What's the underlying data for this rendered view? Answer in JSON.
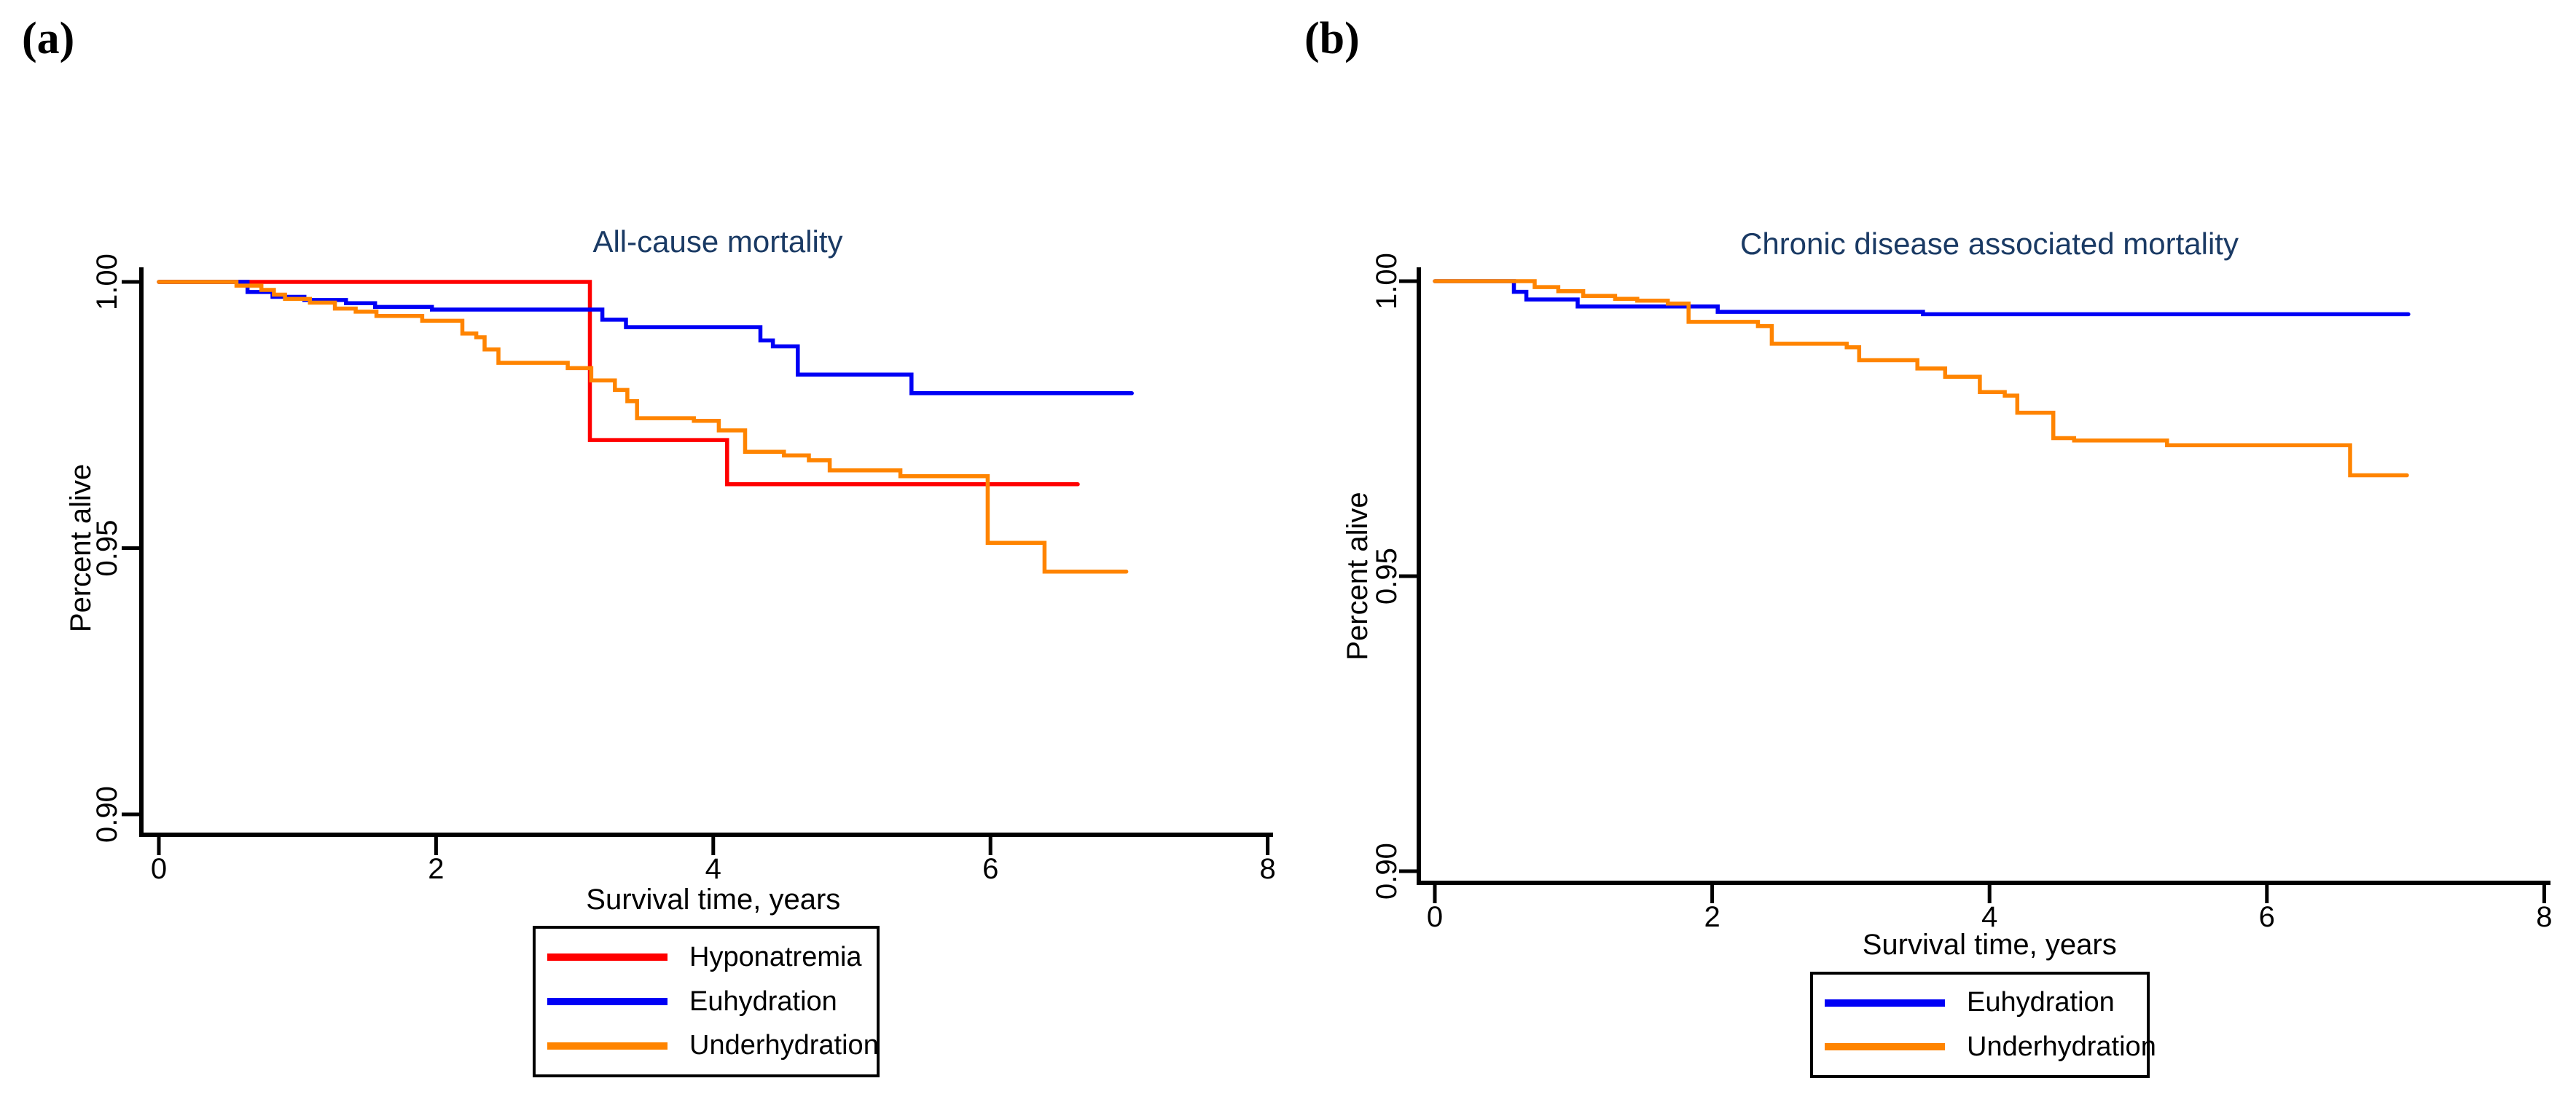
{
  "colors": {
    "hyponatremia": "#ff0000",
    "euhydration": "#0000f5",
    "underhydration": "#ff8400",
    "title_text": "#1a3a64",
    "axis_ink": "#000000"
  },
  "chart_data": [
    {
      "id": "a",
      "type": "line",
      "panel_label": "(a)",
      "title": "All-cause mortality",
      "xlabel": "Survival time, years",
      "ylabel": "Percent alive",
      "xlim": [
        0,
        8
      ],
      "ylim": [
        0.896,
        1.0
      ],
      "grid": false,
      "legend_position": "below",
      "xticks": [
        {
          "value": 0,
          "label": "0"
        },
        {
          "value": 2,
          "label": "2"
        },
        {
          "value": 4,
          "label": "4"
        },
        {
          "value": 6,
          "label": "6"
        },
        {
          "value": 8,
          "label": "8"
        }
      ],
      "yticks": [
        {
          "value": 1.0,
          "label": "1.00"
        },
        {
          "value": 0.95,
          "label": "0.95"
        },
        {
          "value": 0.9,
          "label": "0.90"
        }
      ],
      "series": [
        {
          "name": "Hyponatremia",
          "color_key": "hyponatremia",
          "end_x": 6.63,
          "steps": [
            [
              0,
              1
            ],
            [
              3.11,
              0.9703
            ],
            [
              4.1,
              0.962
            ]
          ]
        },
        {
          "name": "Euhydration",
          "color_key": "euhydration",
          "end_x": 7.02,
          "steps": [
            [
              0,
              1
            ],
            [
              0.64,
              0.9981
            ],
            [
              0.82,
              0.9972
            ],
            [
              1.05,
              0.9966
            ],
            [
              1.35,
              0.996
            ],
            [
              1.56,
              0.9953
            ],
            [
              1.97,
              0.9948
            ],
            [
              3.2,
              0.9929
            ],
            [
              3.37,
              0.9915
            ],
            [
              4.34,
              0.989
            ],
            [
              4.43,
              0.9879
            ],
            [
              4.61,
              0.9826
            ],
            [
              5.43,
              0.9791
            ]
          ]
        },
        {
          "name": "Underhydration",
          "color_key": "underhydration",
          "end_x": 6.98,
          "steps": [
            [
              0,
              1
            ],
            [
              0.56,
              0.9993
            ],
            [
              0.74,
              0.9985
            ],
            [
              0.83,
              0.9976
            ],
            [
              0.91,
              0.9968
            ],
            [
              1.09,
              0.9961
            ],
            [
              1.27,
              0.995
            ],
            [
              1.42,
              0.9944
            ],
            [
              1.57,
              0.9936
            ],
            [
              1.9,
              0.9927
            ],
            [
              2.19,
              0.9903
            ],
            [
              2.29,
              0.9896
            ],
            [
              2.35,
              0.9873
            ],
            [
              2.45,
              0.9848
            ],
            [
              2.95,
              0.9838
            ],
            [
              3.12,
              0.9815
            ],
            [
              3.29,
              0.9797
            ],
            [
              3.38,
              0.9776
            ],
            [
              3.45,
              0.9744
            ],
            [
              3.86,
              0.9739
            ],
            [
              4.04,
              0.9721
            ],
            [
              4.23,
              0.9681
            ],
            [
              4.51,
              0.9674
            ],
            [
              4.69,
              0.9665
            ],
            [
              4.84,
              0.9646
            ],
            [
              5.35,
              0.9635
            ],
            [
              5.98,
              0.951
            ],
            [
              6.39,
              0.9456
            ]
          ]
        }
      ]
    },
    {
      "id": "b",
      "type": "line",
      "panel_label": "(b)",
      "title": "Chronic disease associated mortality",
      "xlabel": "Survival time, years",
      "ylabel": "Percent alive",
      "xlim": [
        0,
        8
      ],
      "ylim": [
        0.898,
        1.0
      ],
      "grid": false,
      "legend_position": "below",
      "xticks": [
        {
          "value": 0,
          "label": "0"
        },
        {
          "value": 2,
          "label": "2"
        },
        {
          "value": 4,
          "label": "4"
        },
        {
          "value": 6,
          "label": "6"
        },
        {
          "value": 8,
          "label": "8"
        }
      ],
      "yticks": [
        {
          "value": 1.0,
          "label": "1.00"
        },
        {
          "value": 0.95,
          "label": "0.95"
        },
        {
          "value": 0.9,
          "label": "0.90"
        }
      ],
      "series": [
        {
          "name": "Euhydration",
          "color_key": "euhydration",
          "end_x": 7.02,
          "steps": [
            [
              0,
              1
            ],
            [
              0.57,
              0.9982
            ],
            [
              0.66,
              0.9969
            ],
            [
              1.03,
              0.9957
            ],
            [
              2.04,
              0.9948
            ],
            [
              3.52,
              0.9944
            ]
          ]
        },
        {
          "name": "Underhydration",
          "color_key": "underhydration",
          "end_x": 7.01,
          "steps": [
            [
              0,
              1
            ],
            [
              0.72,
              0.999
            ],
            [
              0.89,
              0.9983
            ],
            [
              1.07,
              0.9975
            ],
            [
              1.3,
              0.997
            ],
            [
              1.46,
              0.9967
            ],
            [
              1.68,
              0.9962
            ],
            [
              1.83,
              0.9931
            ],
            [
              2.33,
              0.9924
            ],
            [
              2.43,
              0.9894
            ],
            [
              2.97,
              0.9888
            ],
            [
              3.06,
              0.9866
            ],
            [
              3.48,
              0.9852
            ],
            [
              3.68,
              0.9838
            ],
            [
              3.93,
              0.9812
            ],
            [
              4.11,
              0.9806
            ],
            [
              4.2,
              0.9777
            ],
            [
              4.46,
              0.9734
            ],
            [
              4.61,
              0.973
            ],
            [
              5.28,
              0.9722
            ],
            [
              6.6,
              0.9671
            ]
          ]
        }
      ]
    }
  ]
}
